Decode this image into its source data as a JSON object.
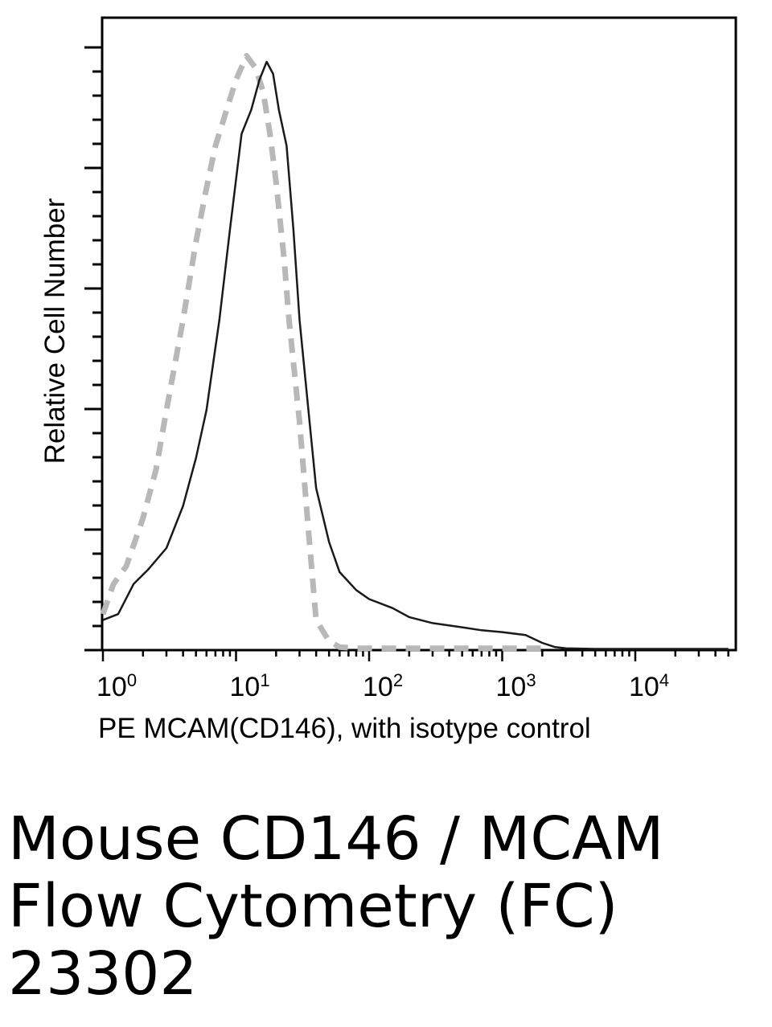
{
  "chart_data": {
    "type": "line",
    "title": "",
    "xlabel": "PE  MCAM(CD146), with isotype control",
    "ylabel": "Relative Cell Number",
    "xscale": "log",
    "xlim": [
      1,
      50000
    ],
    "ylim": [
      0,
      100
    ],
    "grid": false,
    "legend": "none",
    "x_tick_labels": [
      {
        "base": "10",
        "exp": "0",
        "value": 1
      },
      {
        "base": "10",
        "exp": "1",
        "value": 10
      },
      {
        "base": "10",
        "exp": "2",
        "value": 100
      },
      {
        "base": "10",
        "exp": "3",
        "value": 1000
      },
      {
        "base": "10",
        "exp": "4",
        "value": 10000
      }
    ],
    "series": [
      {
        "color": "#1a1a1a",
        "style": "solid",
        "x": [
          1,
          1.3,
          1.7,
          2.2,
          3,
          4,
          5,
          6,
          7.5,
          9,
          11,
          13,
          15,
          17,
          19,
          21,
          24,
          27,
          30,
          35,
          40,
          50,
          60,
          80,
          100,
          150,
          200,
          300,
          500,
          700,
          1000,
          1500,
          2000,
          2500,
          3000,
          5000,
          10000,
          20000,
          50000
        ],
        "values": [
          5,
          6,
          11,
          13.5,
          17,
          24,
          32,
          40,
          55,
          70,
          86,
          90,
          95,
          98,
          96,
          90,
          84,
          70,
          55,
          40,
          27,
          18,
          13,
          10,
          8.5,
          7,
          5.5,
          4.5,
          3.8,
          3.3,
          3,
          2.5,
          1.2,
          0.5,
          0.3,
          0.2,
          0.2,
          0.2,
          0.2
        ]
      },
      {
        "color": "#b8b8b8",
        "style": "dashed",
        "x": [
          1,
          1.2,
          1.5,
          2,
          2.5,
          3,
          4,
          5,
          6,
          7,
          8.5,
          10,
          12,
          14,
          16,
          18,
          20,
          23,
          25,
          30,
          35,
          40,
          50,
          60,
          80,
          100,
          150,
          200,
          300,
          500,
          1000,
          2000
        ],
        "values": [
          6,
          11,
          14,
          22,
          30,
          40,
          55,
          68,
          77,
          84,
          90,
          95,
          99,
          97,
          93,
          86,
          78,
          65,
          55,
          38,
          20,
          5,
          1.5,
          0.5,
          0.3,
          0.3,
          0.3,
          0.3,
          0.3,
          0.3,
          0.3,
          0.3
        ]
      }
    ]
  },
  "caption": {
    "line1": "Mouse CD146 / MCAM",
    "line2": "Flow Cytometry (FC)",
    "line3": "23302"
  }
}
